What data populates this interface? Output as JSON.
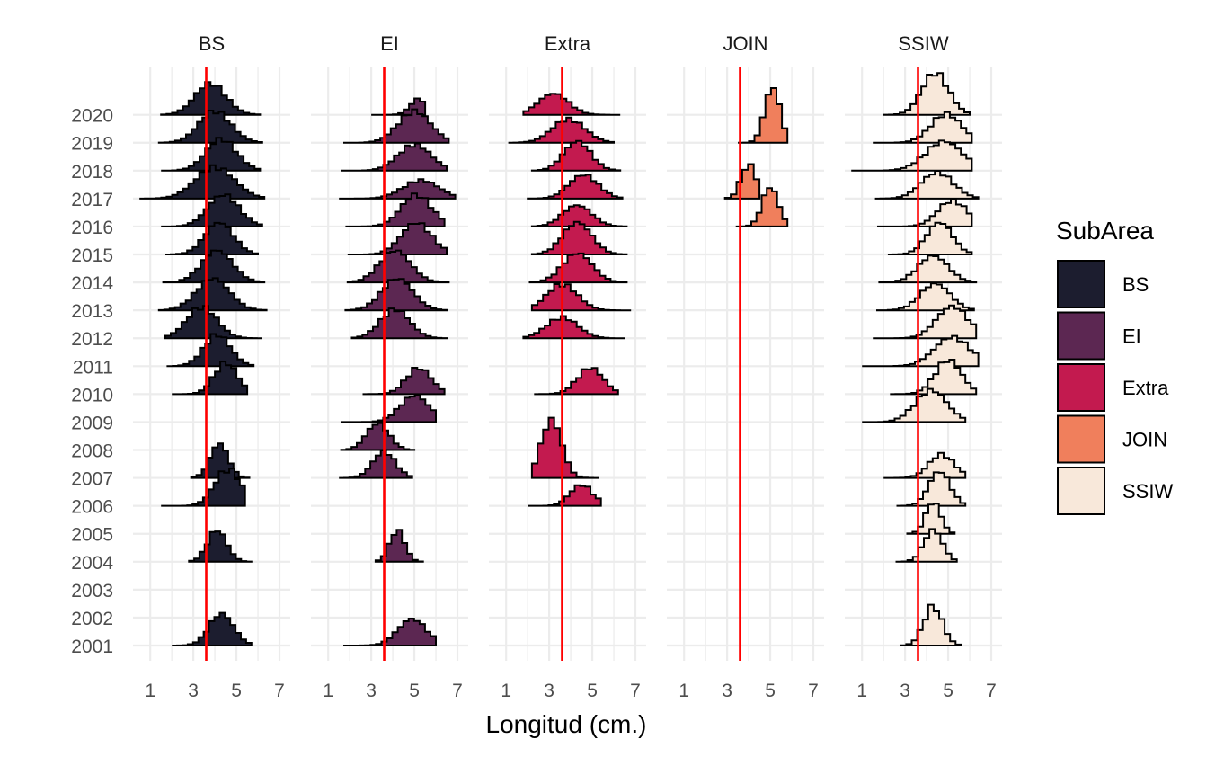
{
  "chart_data": {
    "type": "ridgeline-histogram",
    "xlabel": "Longitud (cm.)",
    "ylabel": "",
    "xlim": [
      0.2,
      7.5
    ],
    "x_ticks": [
      1,
      3,
      5,
      7
    ],
    "years": [
      2001,
      2002,
      2003,
      2004,
      2005,
      2006,
      2007,
      2008,
      2009,
      2010,
      2011,
      2012,
      2013,
      2014,
      2015,
      2016,
      2017,
      2018,
      2019,
      2020
    ],
    "reference_line": {
      "x": 3.6,
      "color": "#ff0000"
    },
    "legend": {
      "title": "SubArea",
      "placement": "right",
      "items": [
        {
          "label": "BS",
          "color": "#1c1d2f"
        },
        {
          "label": "EI",
          "color": "#5c2752"
        },
        {
          "label": "Extra",
          "color": "#c31a4f"
        },
        {
          "label": "JOIN",
          "color": "#f07f5c"
        },
        {
          "label": "SSIW",
          "color": "#f8e8da"
        }
      ]
    },
    "facets": [
      {
        "name": "BS",
        "color": "#1c1d2f",
        "ridges": [
          {
            "year": 2001,
            "range": [
              2.0,
              5.7
            ],
            "peak": 4.3,
            "height": 1.2
          },
          {
            "year": 2004,
            "range": [
              2.8,
              5.7
            ],
            "peak": 4.1,
            "height": 1.2
          },
          {
            "year": 2006,
            "range": [
              1.5,
              5.4
            ],
            "peak": 4.6,
            "height": 1.4
          },
          {
            "year": 2007,
            "range": [
              2.9,
              5.6
            ],
            "peak": 4.2,
            "height": 1.3
          },
          {
            "year": 2010,
            "range": [
              2.0,
              5.5
            ],
            "peak": 4.5,
            "height": 1.2
          },
          {
            "year": 2011,
            "range": [
              1.8,
              5.8
            ],
            "peak": 4.1,
            "height": 1.2
          },
          {
            "year": 2012,
            "range": [
              1.7,
              6.2
            ],
            "peak": 3.4,
            "height": 1.2
          },
          {
            "year": 2013,
            "range": [
              1.4,
              6.4
            ],
            "peak": 3.9,
            "height": 1.2
          },
          {
            "year": 2014,
            "range": [
              1.6,
              6.3
            ],
            "peak": 4.1,
            "height": 1.2
          },
          {
            "year": 2015,
            "range": [
              1.7,
              6.0
            ],
            "peak": 4.2,
            "height": 1.2
          },
          {
            "year": 2016,
            "range": [
              1.5,
              6.2
            ],
            "peak": 4.4,
            "height": 1.2
          },
          {
            "year": 2017,
            "range": [
              0.5,
              6.3
            ],
            "peak": 4.0,
            "height": 1.2
          },
          {
            "year": 2018,
            "range": [
              1.5,
              6.1
            ],
            "peak": 4.3,
            "height": 1.2
          },
          {
            "year": 2019,
            "range": [
              1.4,
              6.2
            ],
            "peak": 4.0,
            "height": 1.2
          },
          {
            "year": 2020,
            "range": [
              1.5,
              6.1
            ],
            "peak": 3.8,
            "height": 1.2
          }
        ]
      },
      {
        "name": "EI",
        "color": "#5c2752",
        "ridges": [
          {
            "year": 2001,
            "range": [
              1.7,
              6.0
            ],
            "peak": 4.9,
            "height": 1.0
          },
          {
            "year": 2004,
            "range": [
              3.2,
              5.4
            ],
            "peak": 4.2,
            "height": 1.2
          },
          {
            "year": 2007,
            "range": [
              1.5,
              4.9
            ],
            "peak": 3.6,
            "height": 1.0
          },
          {
            "year": 2008,
            "range": [
              1.6,
              5.0
            ],
            "peak": 3.3,
            "height": 1.0
          },
          {
            "year": 2009,
            "range": [
              1.6,
              6.0
            ],
            "peak": 5.0,
            "height": 1.0
          },
          {
            "year": 2010,
            "range": [
              2.6,
              6.4
            ],
            "peak": 5.2,
            "height": 1.0
          },
          {
            "year": 2012,
            "range": [
              2.1,
              6.5
            ],
            "peak": 4.1,
            "height": 1.1
          },
          {
            "year": 2013,
            "range": [
              1.8,
              6.5
            ],
            "peak": 4.2,
            "height": 1.2
          },
          {
            "year": 2014,
            "range": [
              1.9,
              6.6
            ],
            "peak": 4.1,
            "height": 1.2
          },
          {
            "year": 2015,
            "range": [
              1.9,
              6.5
            ],
            "peak": 5.1,
            "height": 1.2
          },
          {
            "year": 2016,
            "range": [
              1.8,
              6.4
            ],
            "peak": 5.1,
            "height": 1.2
          },
          {
            "year": 2017,
            "range": [
              1.5,
              6.9
            ],
            "peak": 5.3,
            "height": 0.7
          },
          {
            "year": 2018,
            "range": [
              1.6,
              6.5
            ],
            "peak": 5.0,
            "height": 1.0
          },
          {
            "year": 2019,
            "range": [
              1.7,
              6.6
            ],
            "peak": 5.0,
            "height": 1.2
          },
          {
            "year": 2020,
            "range": [
              3.0,
              5.5
            ],
            "peak": 5.2,
            "height": 0.6
          }
        ]
      },
      {
        "name": "Extra",
        "color": "#c31a4f",
        "ridges": [
          {
            "year": 2006,
            "range": [
              2.0,
              5.4
            ],
            "peak": 4.5,
            "height": 0.8
          },
          {
            "year": 2007,
            "range": [
              2.2,
              5.3
            ],
            "peak": 3.1,
            "height": 2.2
          },
          {
            "year": 2010,
            "range": [
              2.3,
              6.2
            ],
            "peak": 4.9,
            "height": 1.0
          },
          {
            "year": 2012,
            "range": [
              1.8,
              6.5
            ],
            "peak": 3.6,
            "height": 0.8
          },
          {
            "year": 2013,
            "range": [
              2.2,
              6.8
            ],
            "peak": 3.6,
            "height": 1.0
          },
          {
            "year": 2014,
            "range": [
              2.1,
              6.6
            ],
            "peak": 4.3,
            "height": 1.1
          },
          {
            "year": 2015,
            "range": [
              2.2,
              6.6
            ],
            "peak": 4.3,
            "height": 1.2
          },
          {
            "year": 2016,
            "range": [
              2.2,
              6.6
            ],
            "peak": 4.3,
            "height": 0.8
          },
          {
            "year": 2017,
            "range": [
              2.0,
              6.4
            ],
            "peak": 4.6,
            "height": 0.9
          },
          {
            "year": 2018,
            "range": [
              2.2,
              6.3
            ],
            "peak": 4.3,
            "height": 1.1
          },
          {
            "year": 2019,
            "range": [
              1.1,
              6.0
            ],
            "peak": 3.9,
            "height": 0.9
          },
          {
            "year": 2020,
            "range": [
              1.8,
              6.3
            ],
            "peak": 3.2,
            "height": 0.8
          }
        ]
      },
      {
        "name": "JOIN",
        "color": "#f07f5c",
        "ridges": [
          {
            "year": 2016,
            "range": [
              3.4,
              5.8
            ],
            "peak": 5.0,
            "height": 1.5
          },
          {
            "year": 2017,
            "range": [
              2.9,
              4.5
            ],
            "peak": 4.0,
            "height": 1.3
          },
          {
            "year": 2019,
            "range": [
              3.5,
              5.8
            ],
            "peak": 5.1,
            "height": 2.1
          }
        ]
      },
      {
        "name": "SSIW",
        "color": "#f8e8da",
        "ridges": [
          {
            "year": 2001,
            "range": [
              2.8,
              5.6
            ],
            "peak": 4.3,
            "height": 1.5
          },
          {
            "year": 2004,
            "range": [
              2.6,
              5.4
            ],
            "peak": 4.3,
            "height": 1.2
          },
          {
            "year": 2005,
            "range": [
              3.1,
              5.3
            ],
            "peak": 4.3,
            "height": 1.2
          },
          {
            "year": 2006,
            "range": [
              2.6,
              5.8
            ],
            "peak": 4.6,
            "height": 1.3
          },
          {
            "year": 2007,
            "range": [
              2.0,
              5.8
            ],
            "peak": 4.7,
            "height": 0.9
          },
          {
            "year": 2009,
            "range": [
              1.0,
              5.8
            ],
            "peak": 4.2,
            "height": 1.2
          },
          {
            "year": 2010,
            "range": [
              2.3,
              6.3
            ],
            "peak": 5.0,
            "height": 1.3
          },
          {
            "year": 2011,
            "range": [
              1.0,
              6.4
            ],
            "peak": 5.2,
            "height": 1.1
          },
          {
            "year": 2012,
            "range": [
              1.5,
              6.3
            ],
            "peak": 5.2,
            "height": 1.2
          },
          {
            "year": 2013,
            "range": [
              1.7,
              6.2
            ],
            "peak": 4.4,
            "height": 1.0
          },
          {
            "year": 2014,
            "range": [
              1.8,
              6.3
            ],
            "peak": 4.3,
            "height": 1.0
          },
          {
            "year": 2015,
            "range": [
              2.2,
              6.1
            ],
            "peak": 4.6,
            "height": 1.2
          },
          {
            "year": 2016,
            "range": [
              1.7,
              6.1
            ],
            "peak": 5.2,
            "height": 1.0
          },
          {
            "year": 2017,
            "range": [
              1.6,
              6.4
            ],
            "peak": 4.5,
            "height": 1.0
          },
          {
            "year": 2018,
            "range": [
              0.5,
              6.1
            ],
            "peak": 4.8,
            "height": 1.1
          },
          {
            "year": 2019,
            "range": [
              1.5,
              6.1
            ],
            "peak": 4.9,
            "height": 1.1
          },
          {
            "year": 2020,
            "range": [
              2.0,
              6.0
            ],
            "peak": 4.4,
            "height": 1.6
          }
        ]
      }
    ]
  }
}
